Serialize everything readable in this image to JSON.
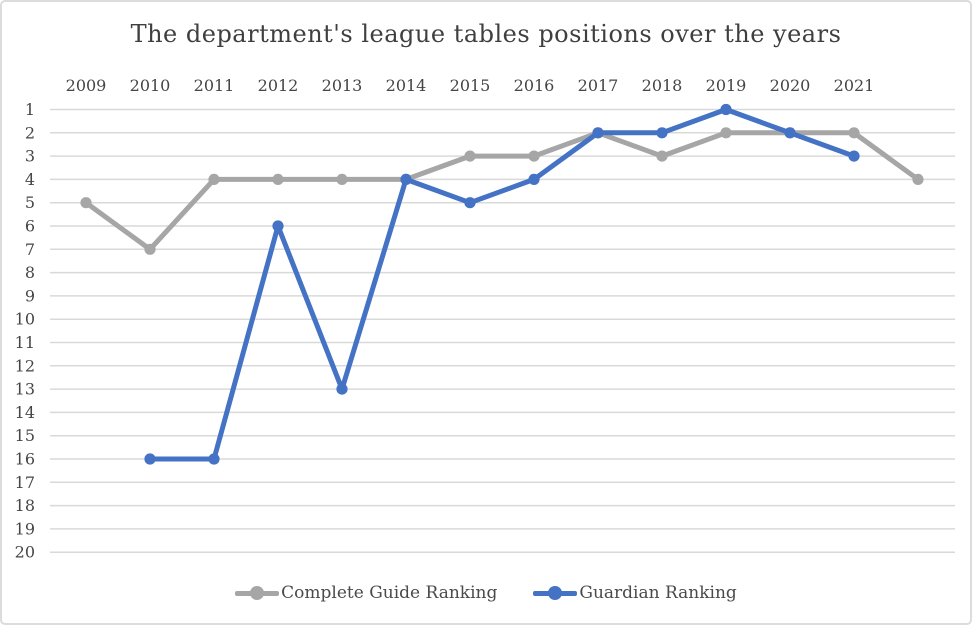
{
  "chart_data": {
    "type": "line",
    "title": "The department's league tables positions over the years",
    "x_tick_labels": [
      "2009",
      "2010",
      "2011",
      "2012",
      "2013",
      "2014",
      "2015",
      "2016",
      "2017",
      "2018",
      "2019",
      "2020",
      "2021"
    ],
    "y_ticks": [
      1,
      2,
      3,
      4,
      5,
      6,
      7,
      8,
      9,
      10,
      11,
      12,
      13,
      14,
      15,
      16,
      17,
      18,
      19,
      20
    ],
    "ylim": [
      1,
      20
    ],
    "y_axis_inverted": true,
    "xlabel": "",
    "ylabel": "",
    "grid": "horizontal",
    "gridline_color": "#d9d9d9",
    "legend_position": "bottom",
    "marker": "circle",
    "series": [
      {
        "name": "Complete Guide Ranking",
        "slug": "complete-guide-ranking",
        "color": "#A6A6A6",
        "years": [
          2009,
          2010,
          2011,
          2012,
          2013,
          2014,
          2015,
          2016,
          2017,
          2018,
          2019,
          2020,
          2021,
          2022
        ],
        "values": [
          5,
          7,
          4,
          4,
          4,
          4,
          3,
          3,
          2,
          3,
          2,
          2,
          2,
          4
        ]
      },
      {
        "name": "Guardian Ranking",
        "slug": "guardian-ranking",
        "color": "#4472C4",
        "years": [
          2010,
          2011,
          2012,
          2013,
          2014,
          2015,
          2016,
          2017,
          2018,
          2019,
          2020,
          2021
        ],
        "values": [
          16,
          16,
          6,
          13,
          4,
          5,
          4,
          2,
          2,
          1,
          2,
          3
        ]
      }
    ],
    "text_color": "#454545"
  }
}
